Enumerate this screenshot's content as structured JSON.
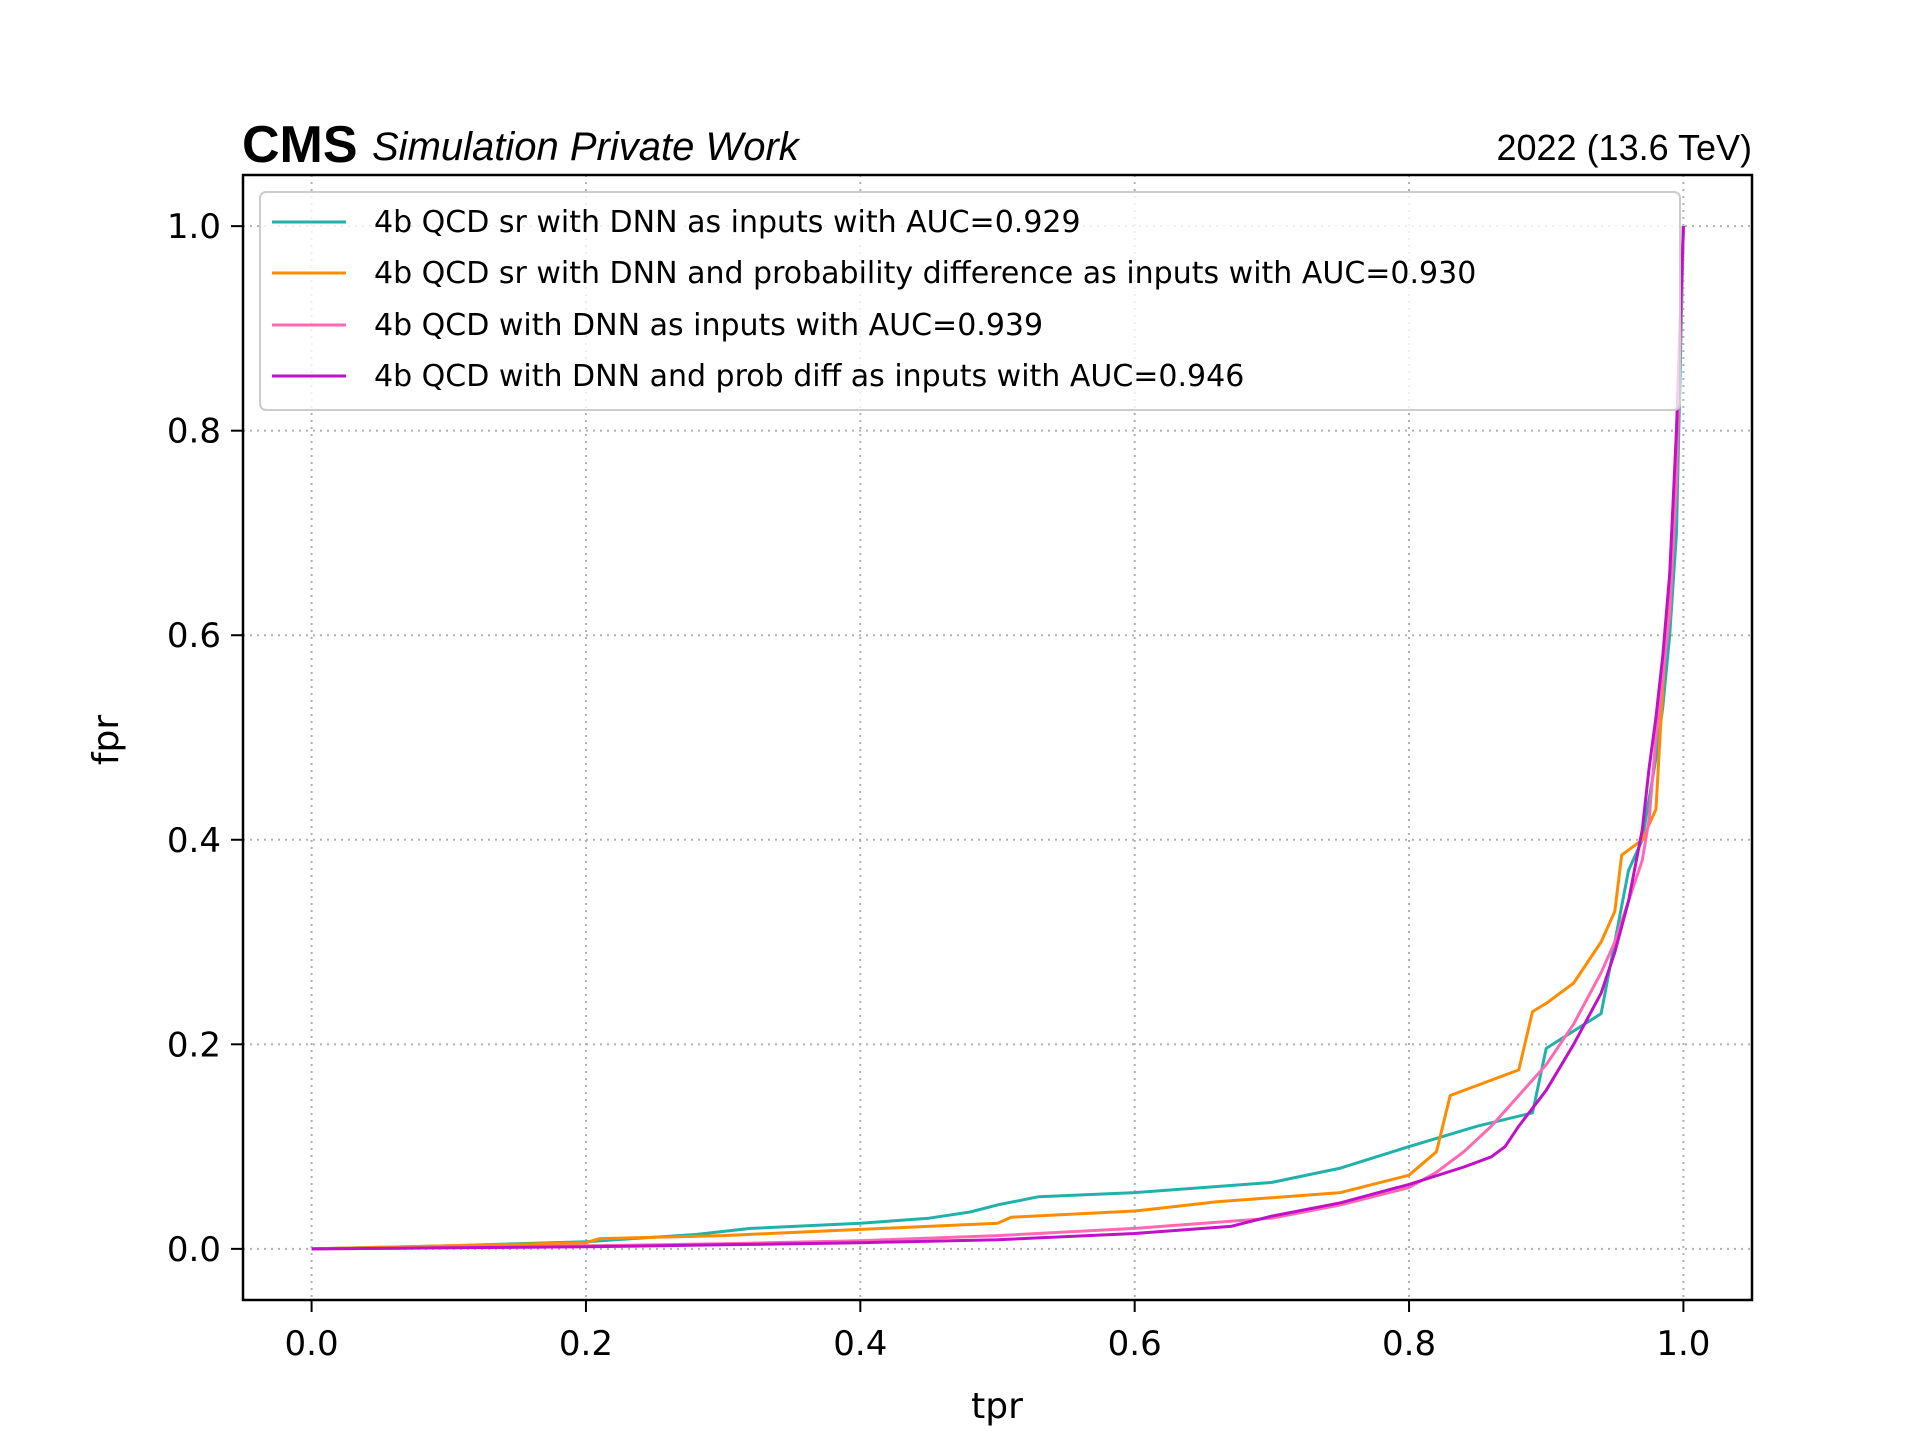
{
  "header": {
    "experiment": "CMS",
    "label": "Simulation Private Work",
    "lumi": "2022 (13.6 TeV)"
  },
  "chart_data": {
    "type": "line",
    "xlabel": "tpr",
    "ylabel": "fpr",
    "xlim": [
      -0.05,
      1.05
    ],
    "ylim": [
      -0.05,
      1.05
    ],
    "xticks": [
      "0.0",
      "0.2",
      "0.4",
      "0.6",
      "0.8",
      "1.0"
    ],
    "yticks": [
      "0.0",
      "0.2",
      "0.4",
      "0.6",
      "0.8",
      "1.0"
    ],
    "grid": true,
    "legend_position": "top",
    "series": [
      {
        "name": "4b QCD sr with DNN as inputs with AUC=0.929",
        "color": "#20b2aa",
        "x": [
          0.0,
          0.1,
          0.2,
          0.28,
          0.32,
          0.4,
          0.45,
          0.48,
          0.5,
          0.53,
          0.6,
          0.7,
          0.75,
          0.8,
          0.85,
          0.89,
          0.9,
          0.94,
          0.95,
          0.96,
          0.97,
          0.975,
          0.98,
          0.985,
          0.99,
          0.995,
          1.0
        ],
        "y": [
          0.0,
          0.003,
          0.007,
          0.014,
          0.02,
          0.025,
          0.03,
          0.036,
          0.043,
          0.051,
          0.055,
          0.065,
          0.079,
          0.1,
          0.12,
          0.133,
          0.196,
          0.23,
          0.3,
          0.37,
          0.4,
          0.44,
          0.48,
          0.53,
          0.6,
          0.7,
          1.0
        ]
      },
      {
        "name": "4b QCD sr with DNN and probability difference as inputs with AUC=0.930",
        "color": "#ff8c00",
        "x": [
          0.0,
          0.1,
          0.2,
          0.21,
          0.3,
          0.4,
          0.5,
          0.51,
          0.6,
          0.66,
          0.75,
          0.8,
          0.82,
          0.83,
          0.86,
          0.88,
          0.89,
          0.9,
          0.92,
          0.94,
          0.95,
          0.955,
          0.97,
          0.98,
          0.985,
          0.99,
          0.995,
          1.0
        ],
        "y": [
          0.0,
          0.003,
          0.006,
          0.01,
          0.013,
          0.019,
          0.025,
          0.031,
          0.037,
          0.046,
          0.055,
          0.072,
          0.095,
          0.15,
          0.165,
          0.175,
          0.232,
          0.24,
          0.26,
          0.3,
          0.33,
          0.385,
          0.4,
          0.43,
          0.55,
          0.65,
          0.8,
          1.0
        ]
      },
      {
        "name": "4b QCD with DNN as inputs with AUC=0.939",
        "color": "#ff69b4",
        "x": [
          0.0,
          0.1,
          0.2,
          0.3,
          0.4,
          0.5,
          0.6,
          0.7,
          0.75,
          0.8,
          0.82,
          0.84,
          0.86,
          0.88,
          0.9,
          0.92,
          0.94,
          0.95,
          0.96,
          0.97,
          0.975,
          0.98,
          0.985,
          0.99,
          0.995,
          1.0
        ],
        "y": [
          0.0,
          0.001,
          0.003,
          0.005,
          0.008,
          0.013,
          0.02,
          0.03,
          0.043,
          0.06,
          0.075,
          0.095,
          0.12,
          0.15,
          0.18,
          0.22,
          0.27,
          0.3,
          0.34,
          0.38,
          0.42,
          0.5,
          0.56,
          0.62,
          0.75,
          1.0
        ]
      },
      {
        "name": "4b QCD with DNN and prob diff as inputs with AUC=0.946",
        "color": "#c010c8",
        "x": [
          0.0,
          0.1,
          0.2,
          0.3,
          0.4,
          0.5,
          0.6,
          0.67,
          0.7,
          0.75,
          0.8,
          0.84,
          0.86,
          0.87,
          0.88,
          0.9,
          0.92,
          0.94,
          0.95,
          0.96,
          0.97,
          0.975,
          0.98,
          0.985,
          0.99,
          0.995,
          1.0
        ],
        "y": [
          0.0,
          0.001,
          0.002,
          0.004,
          0.006,
          0.009,
          0.015,
          0.022,
          0.032,
          0.045,
          0.063,
          0.08,
          0.09,
          0.1,
          0.12,
          0.155,
          0.2,
          0.25,
          0.29,
          0.34,
          0.41,
          0.47,
          0.52,
          0.58,
          0.66,
          0.8,
          1.0
        ]
      }
    ]
  }
}
